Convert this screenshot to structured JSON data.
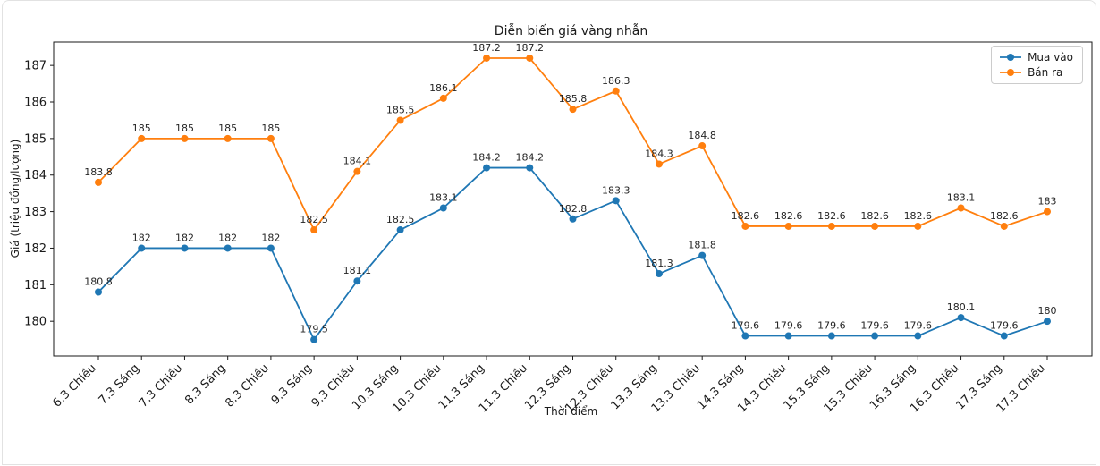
{
  "chart_data": {
    "type": "line",
    "title": "Diễn biến giá vàng nhẫn",
    "xlabel": "Thời điểm",
    "ylabel": "Giá (triệu đồng/lượng)",
    "categories": [
      "6.3 Chiều",
      "7.3 Sáng",
      "7.3 Chiều",
      "8.3 Sáng",
      "8.3 Chiều",
      "9.3 Sáng",
      "9.3 Chiều",
      "10.3 Sáng",
      "10.3 Chiều",
      "11.3 Sáng",
      "11.3 Chiều",
      "12.3 Sáng",
      "12.3 Chiều",
      "13.3 Sáng",
      "13.3 Chiều",
      "14.3 Sáng",
      "14.3 Chiều",
      "15.3 Sáng",
      "15.3 Chiều",
      "16.3 Sáng",
      "16.3 Chiều",
      "17.3 Sáng",
      "17.3 Chiều"
    ],
    "series": [
      {
        "name": "Mua vào",
        "color": "#1f77b4",
        "values": [
          180.8,
          182,
          182,
          182,
          182,
          179.5,
          181.1,
          182.5,
          183.1,
          184.2,
          184.2,
          182.8,
          183.3,
          181.3,
          181.8,
          179.6,
          179.6,
          179.6,
          179.6,
          179.6,
          180.1,
          179.6,
          180
        ]
      },
      {
        "name": "Bán ra",
        "color": "#ff7f0e",
        "values": [
          183.8,
          185,
          185,
          185,
          185,
          182.5,
          184.1,
          185.5,
          186.1,
          187.2,
          187.2,
          185.8,
          186.3,
          184.3,
          184.8,
          182.6,
          182.6,
          182.6,
          182.6,
          182.6,
          183.1,
          182.6,
          183
        ]
      }
    ],
    "yticks": [
      180,
      181,
      182,
      183,
      184,
      185,
      186,
      187
    ],
    "ylim": [
      179.05,
      187.64
    ],
    "grid": false,
    "point_labels": true,
    "legend_position": "upper right",
    "axis_color": "#1a1a1a",
    "label_color": "#262626"
  }
}
